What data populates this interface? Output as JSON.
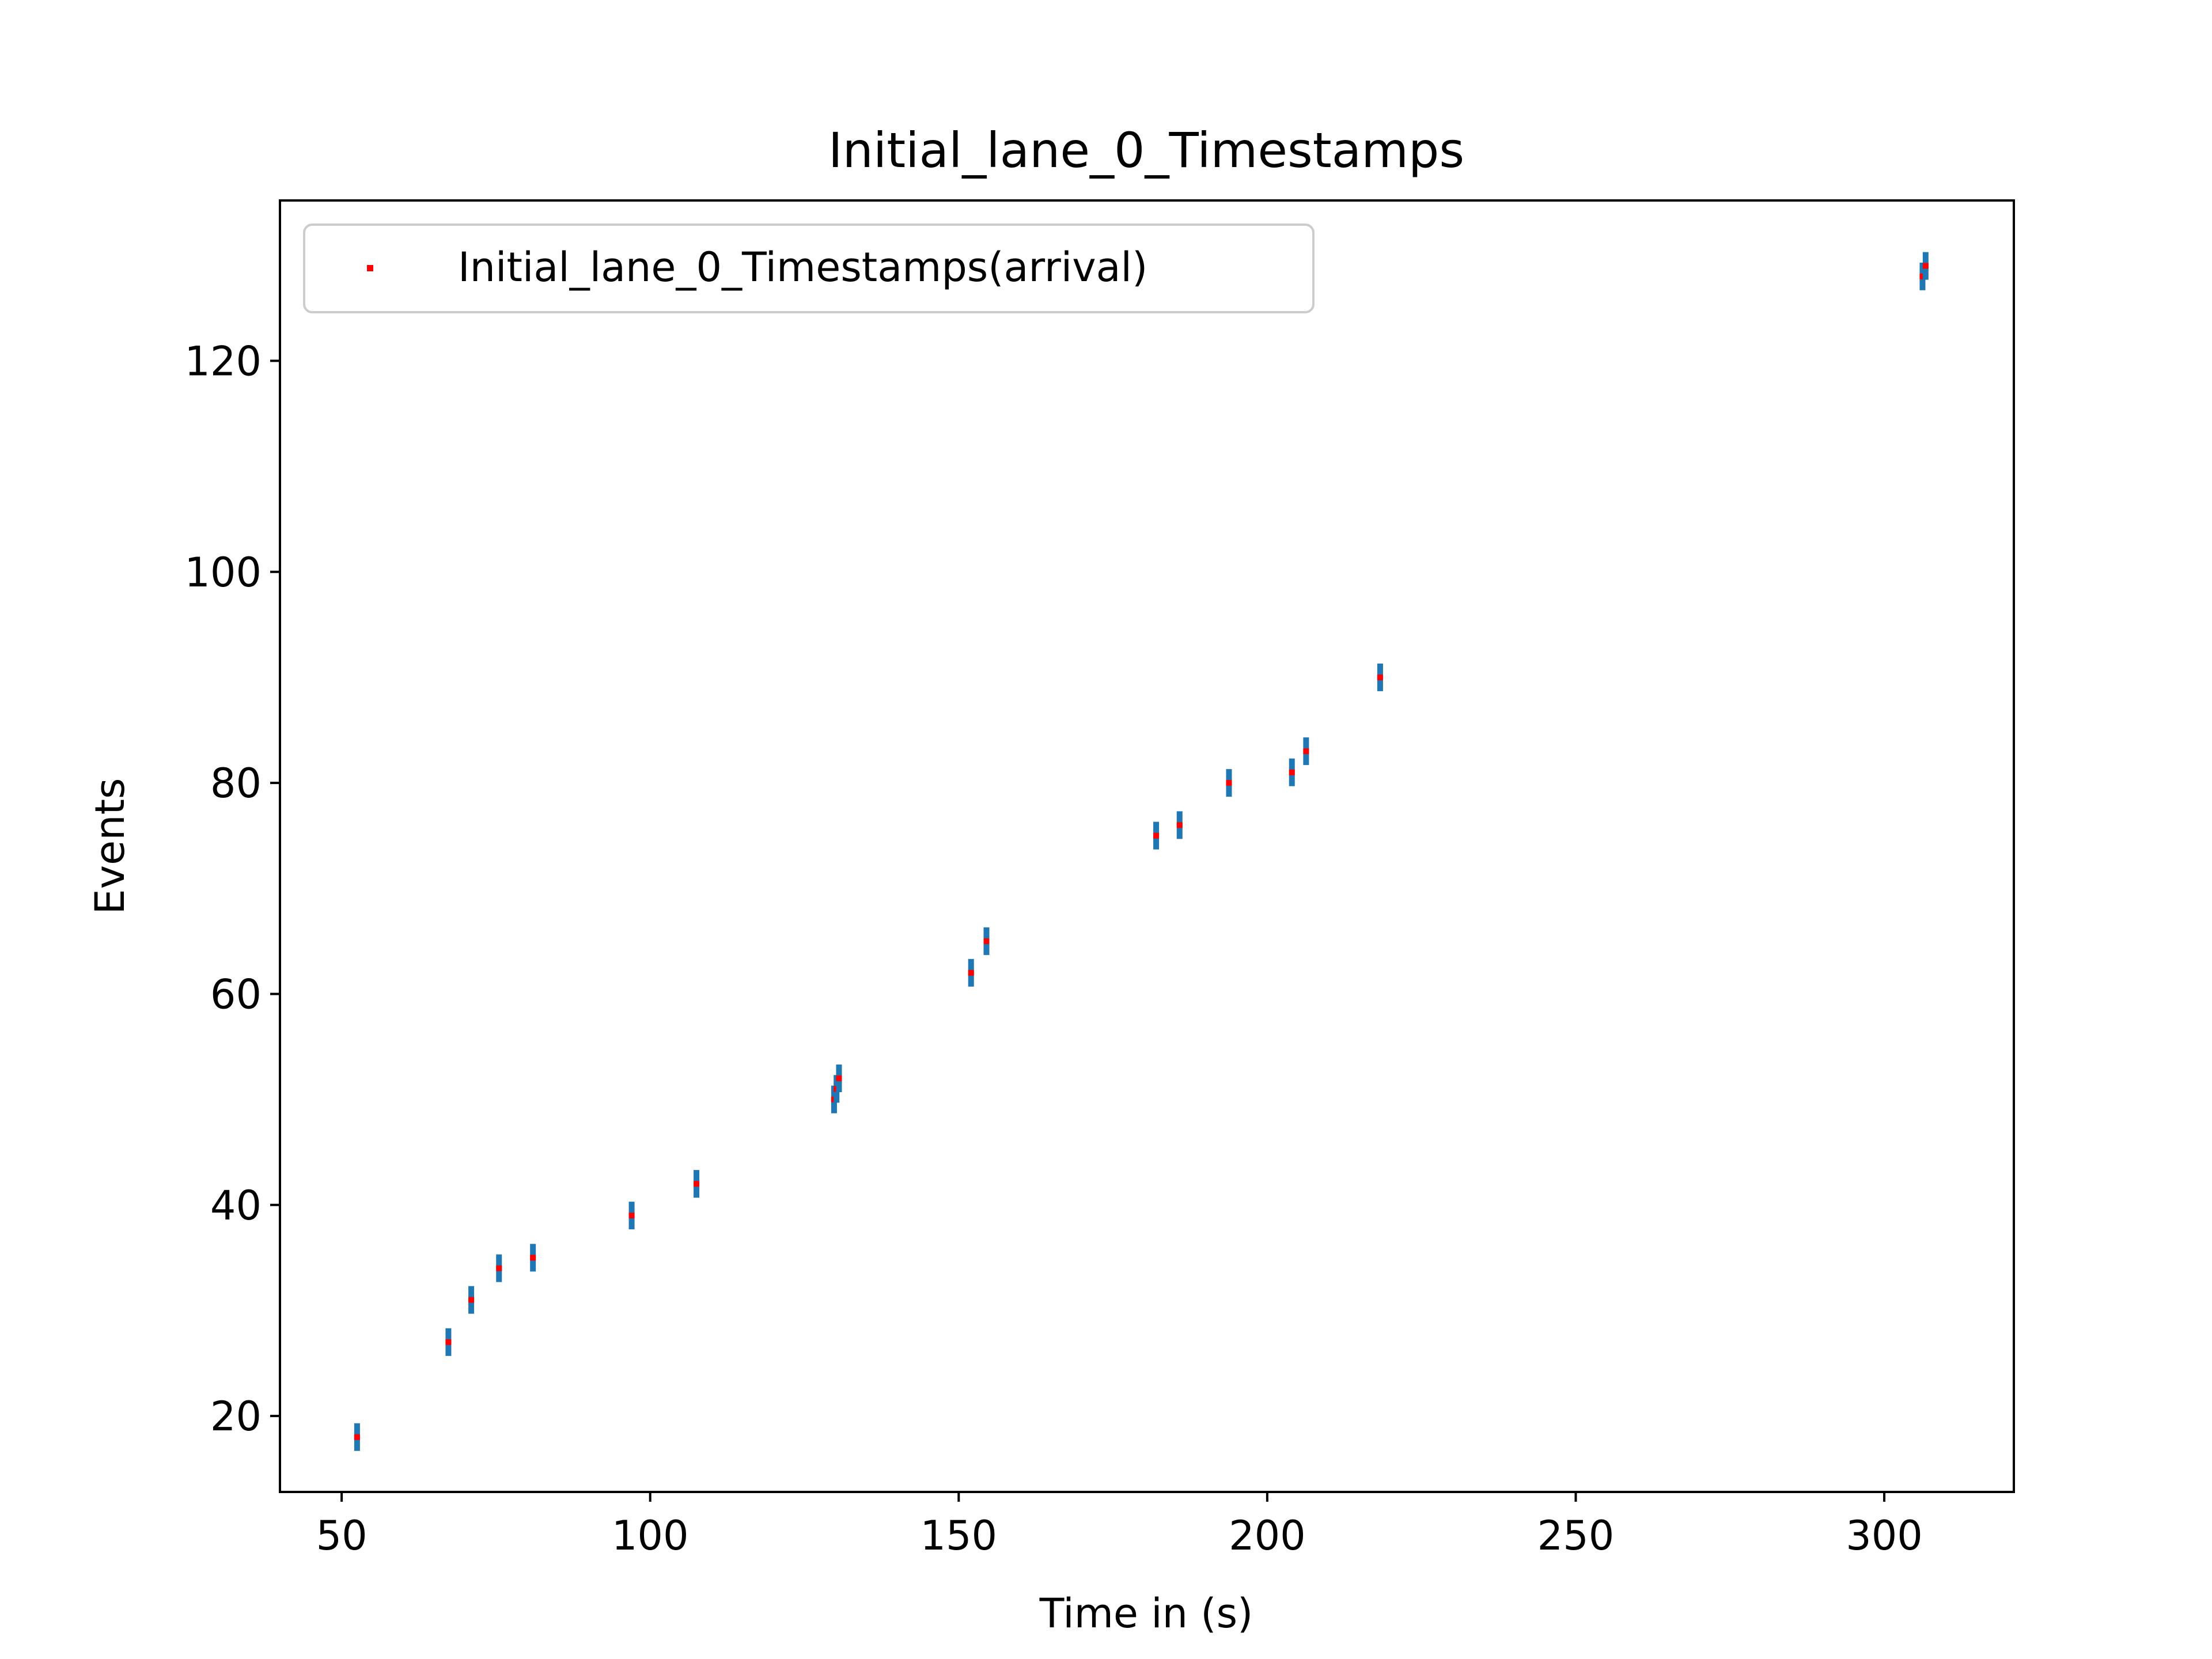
{
  "chart_data": {
    "type": "scatter",
    "title": "Initial_lane_0_Timestamps",
    "xlabel": "Time in (s)",
    "ylabel": "Events",
    "xlim": [
      40,
      321
    ],
    "ylim": [
      12.8,
      135.2
    ],
    "xticks": [
      50,
      100,
      150,
      200,
      250,
      300
    ],
    "yticks": [
      20,
      40,
      60,
      80,
      100,
      120
    ],
    "grid": false,
    "legend_position": "upper left",
    "series": [
      {
        "name": "Initial_lane_0_Timestamps(arrival)",
        "color": "#ff0000",
        "marker_color": "#1f77b4",
        "points": [
          {
            "x": 52.5,
            "y": 18
          },
          {
            "x": 67.3,
            "y": 27
          },
          {
            "x": 71.0,
            "y": 31
          },
          {
            "x": 75.5,
            "y": 34
          },
          {
            "x": 81.0,
            "y": 35
          },
          {
            "x": 97.0,
            "y": 39
          },
          {
            "x": 107.5,
            "y": 42
          },
          {
            "x": 129.8,
            "y": 50
          },
          {
            "x": 130.2,
            "y": 51
          },
          {
            "x": 130.6,
            "y": 52
          },
          {
            "x": 152.0,
            "y": 62
          },
          {
            "x": 154.5,
            "y": 65
          },
          {
            "x": 182.0,
            "y": 75
          },
          {
            "x": 185.8,
            "y": 76
          },
          {
            "x": 193.8,
            "y": 80
          },
          {
            "x": 204.0,
            "y": 81
          },
          {
            "x": 206.3,
            "y": 83
          },
          {
            "x": 218.3,
            "y": 90
          },
          {
            "x": 306.2,
            "y": 128
          },
          {
            "x": 306.7,
            "y": 129
          }
        ]
      }
    ]
  }
}
